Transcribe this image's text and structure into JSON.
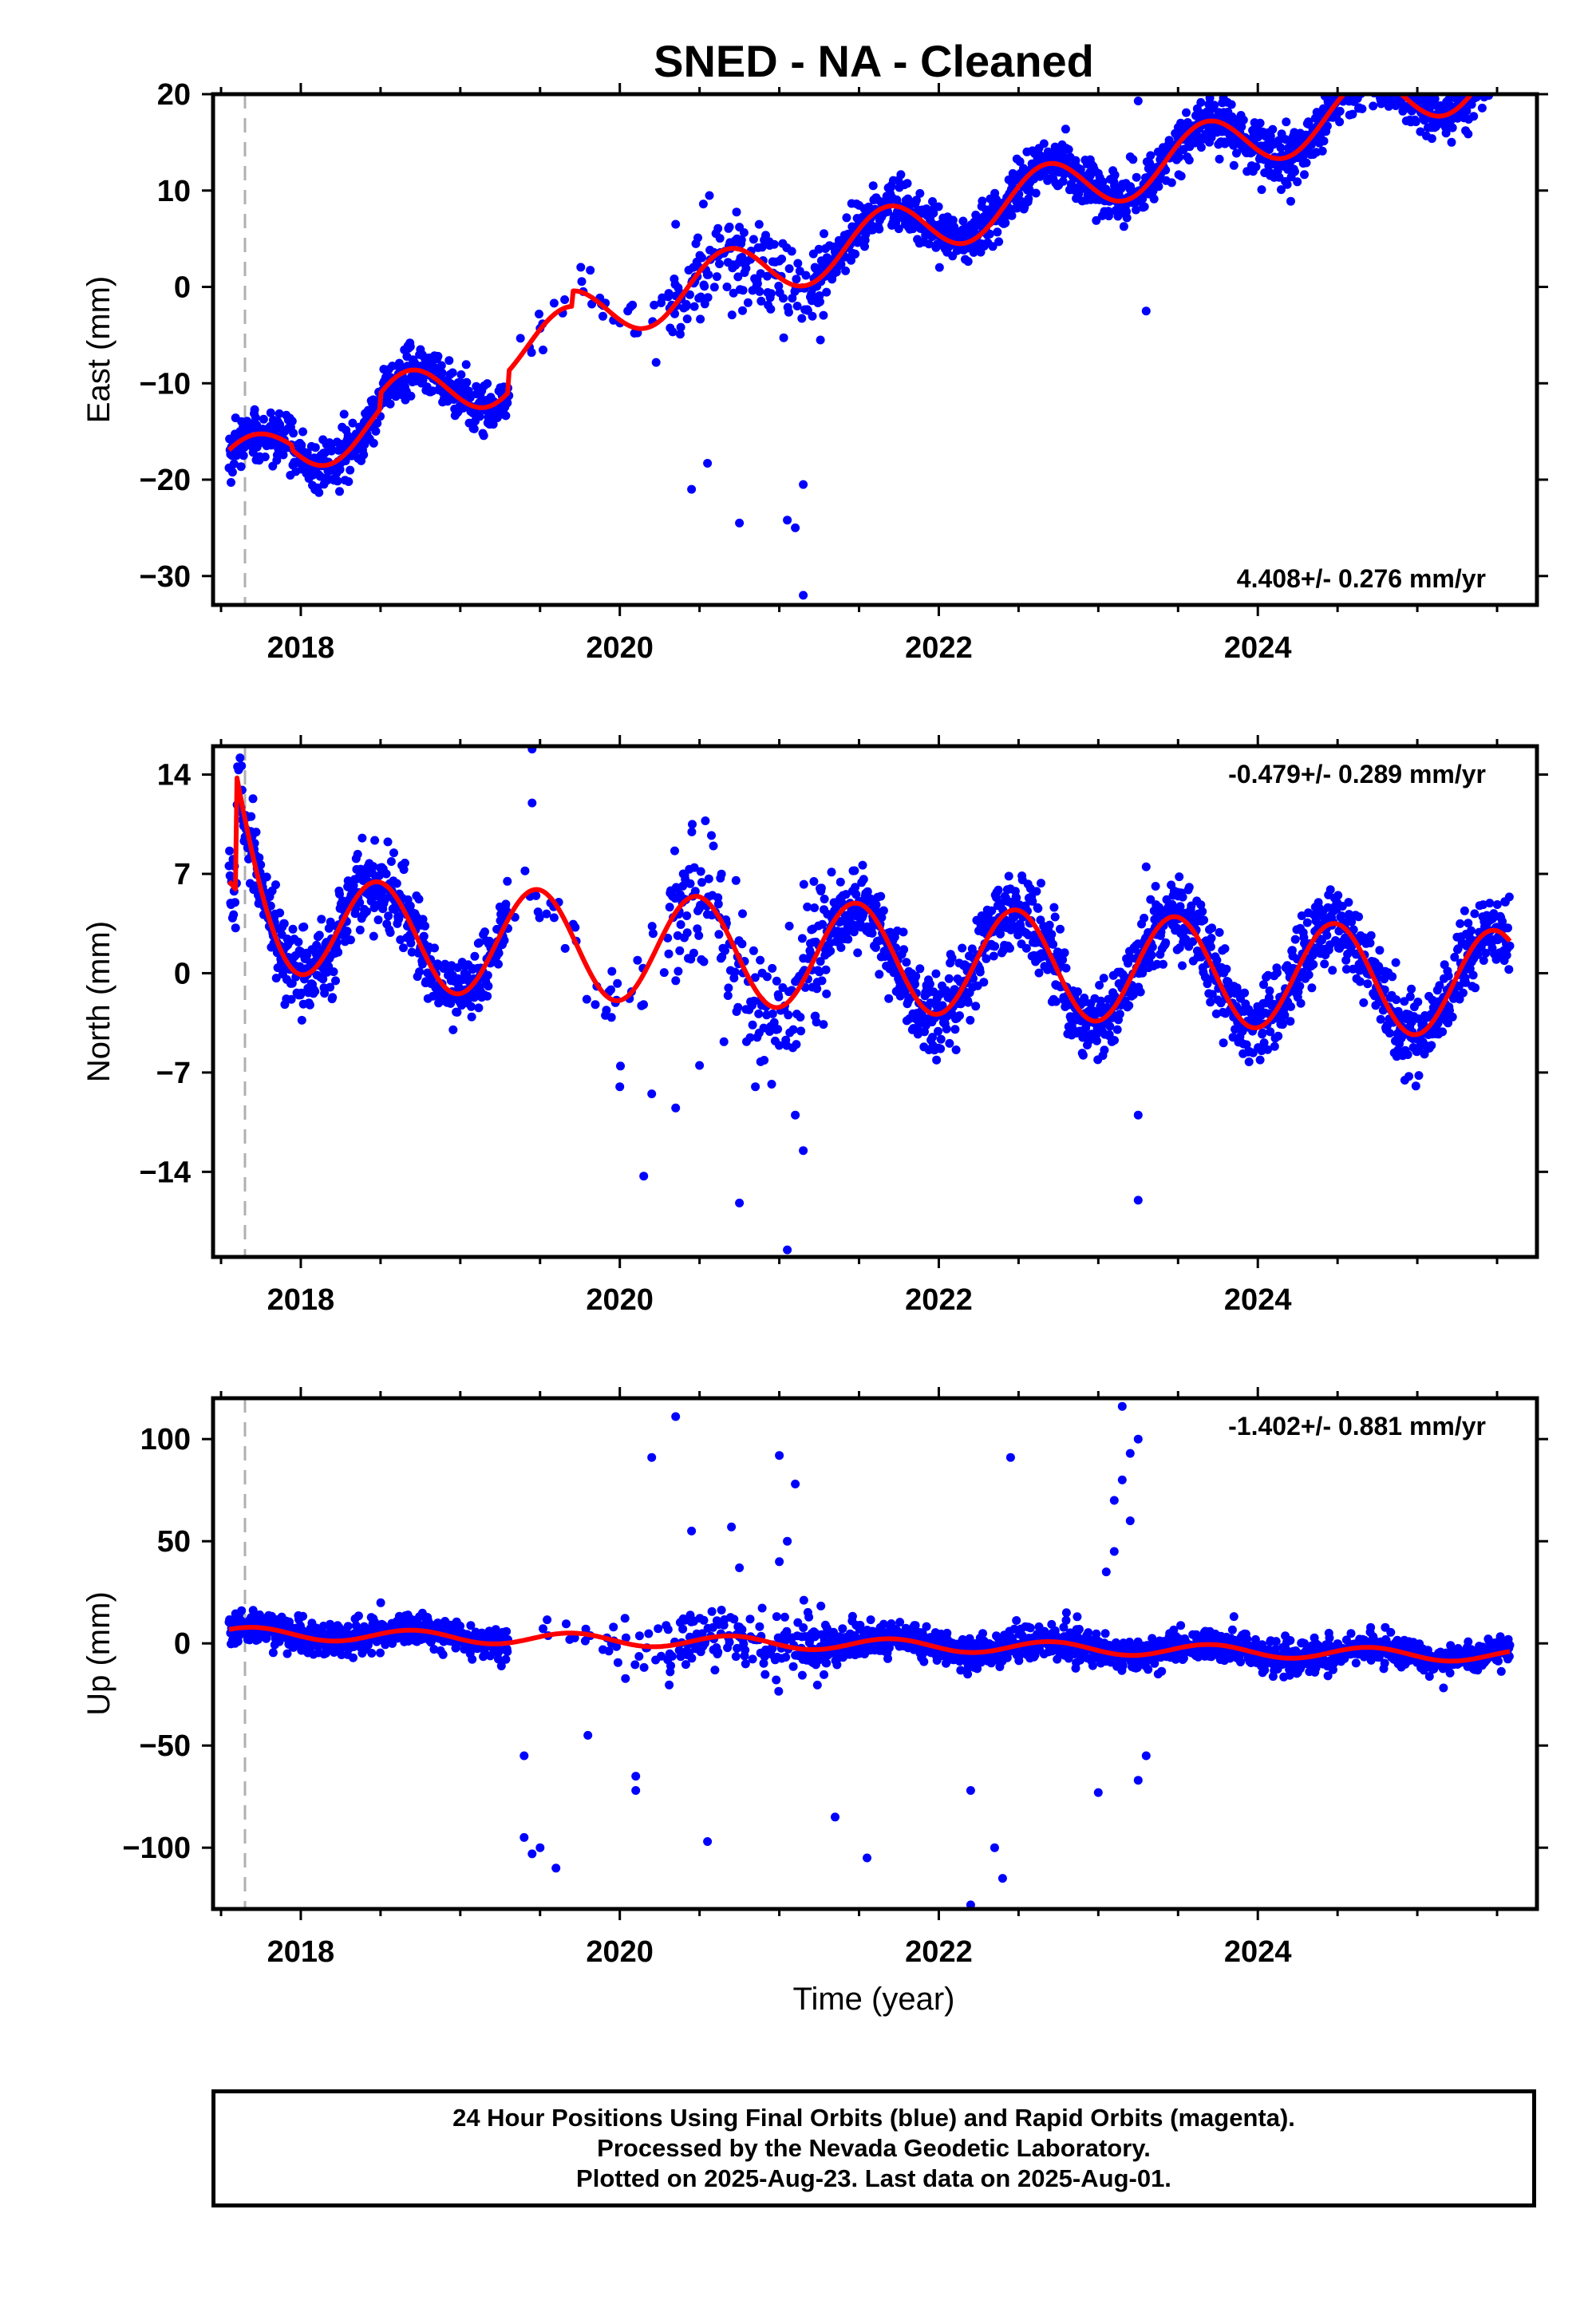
{
  "figure": {
    "title": "SNED  - NA - Cleaned",
    "xlabel": "Time (year)"
  },
  "colors": {
    "final_orbits": "#0000ff",
    "model_fit": "#ff0000",
    "equipment_change": "#b0b0b0",
    "frame": "#000000"
  },
  "footer": {
    "line1": "24 Hour Positions Using Final Orbits (blue) and Rapid Orbits (magenta).",
    "line2": "Processed by the Nevada Geodetic Laboratory.",
    "line3": "Plotted on 2025-Aug-23. Last data on 2025-Aug-01."
  },
  "chart_data": [
    {
      "type": "scatter",
      "component": "east",
      "ylabel": "East (mm)",
      "rate_text": "4.408+/- 0.276 mm/yr",
      "rate_position": "bottom-right",
      "xlim": [
        2017.45,
        2025.75
      ],
      "ylim": [
        -33,
        20
      ],
      "xticks": [
        2018,
        2020,
        2022,
        2024
      ],
      "xtick_labels": [
        "2018",
        "2020",
        "2022",
        "2024"
      ],
      "yticks": [
        -30,
        -20,
        -10,
        0,
        10,
        20
      ],
      "ytick_labels": [
        "−30",
        "−20",
        "−10",
        "0",
        "10",
        "20"
      ],
      "equipment_change_x": 2017.65,
      "model": {
        "trend": [
          2017.6,
          -18.0,
          4.408
        ],
        "seasonal": [
          [
            2017.6,
            2017.9,
            2.2,
            2018.7
          ],
          [
            2018.0,
            2025.6,
            0.9,
            2024.6
          ]
        ],
        "offsets": [
          [
            2018.5,
            1.6
          ],
          [
            2019.3,
            2.2
          ],
          [
            2019.7,
            1.6
          ]
        ]
      },
      "points": {
        "count": 2550,
        "noise": 1.3,
        "sparse_ranges": [
          [
            2019.3,
            2020.3
          ],
          [
            2020.3,
            2021.2
          ]
        ],
        "outliers": [
          [
            2020.35,
            6.5
          ],
          [
            2020.75,
            6.2
          ],
          [
            2020.75,
            -24.5
          ],
          [
            2021.05,
            -24.2
          ],
          [
            2021.1,
            -25.0
          ],
          [
            2021.15,
            -32.0
          ],
          [
            2020.45,
            -21.0
          ],
          [
            2021.15,
            -20.5
          ],
          [
            2023.25,
            19.3
          ],
          [
            2023.2,
            13.5
          ],
          [
            2023.1,
            11.5
          ],
          [
            2022.95,
            13.2
          ],
          [
            2023.3,
            -2.5
          ],
          [
            2020.55,
            -18.3
          ],
          [
            2020.05,
            -2.5
          ]
        ]
      }
    },
    {
      "type": "scatter",
      "component": "north",
      "ylabel": "North (mm)",
      "rate_text": "-0.479+/- 0.289 mm/yr",
      "rate_position": "top-right",
      "xlim": [
        2017.45,
        2025.75
      ],
      "ylim": [
        -20,
        16
      ],
      "xticks": [
        2018,
        2020,
        2022,
        2024
      ],
      "xtick_labels": [
        "2018",
        "2020",
        "2022",
        "2024"
      ],
      "yticks": [
        -14,
        -7,
        0,
        7,
        14
      ],
      "ytick_labels": [
        "−14",
        "−7",
        "0",
        "7",
        "14"
      ],
      "equipment_change_x": 2017.65,
      "model": {
        "trend": [
          2017.6,
          3.0,
          -0.479
        ],
        "seasonal_amplitude": 3.8,
        "seasonal_peak": 2018.48,
        "initial_transient": [
          2017.6,
          8.0,
          0.18
        ]
      },
      "points": {
        "count": 2550,
        "noise": 1.4,
        "sparse_ranges": [
          [
            2019.3,
            2020.3
          ],
          [
            2020.3,
            2021.2
          ]
        ],
        "outliers": [
          [
            2019.45,
            15.8
          ],
          [
            2019.45,
            12.0
          ],
          [
            2017.7,
            12.3
          ],
          [
            2020.15,
            -14.3
          ],
          [
            2020.75,
            -16.2
          ],
          [
            2021.05,
            -19.5
          ],
          [
            2021.15,
            -12.5
          ],
          [
            2021.1,
            -10.0
          ],
          [
            2023.25,
            -16.0
          ],
          [
            2023.25,
            -10.0
          ],
          [
            2023.3,
            7.5
          ],
          [
            2020.0,
            -8.0
          ],
          [
            2020.2,
            -8.5
          ],
          [
            2020.35,
            -9.5
          ],
          [
            2020.5,
            -6.5
          ],
          [
            2020.85,
            -8.0
          ]
        ]
      }
    },
    {
      "type": "scatter",
      "component": "up",
      "ylabel": "Up (mm)",
      "rate_text": "-1.402+/- 0.881 mm/yr",
      "rate_position": "top-right",
      "xlim": [
        2017.45,
        2025.75
      ],
      "ylim": [
        -130,
        120
      ],
      "xticks": [
        2018,
        2020,
        2022,
        2024
      ],
      "xtick_labels": [
        "2018",
        "2020",
        "2022",
        "2024"
      ],
      "yticks": [
        -100,
        -50,
        0,
        50,
        100
      ],
      "ytick_labels": [
        "−100",
        "−50",
        "0",
        "50",
        "100"
      ],
      "equipment_change_x": 2017.65,
      "model": {
        "trend": [
          2017.6,
          5.0,
          -1.402
        ],
        "seasonal_amplitude": 3.0,
        "seasonal_peak": 2018.7
      },
      "points": {
        "count": 2550,
        "noise": 4.0,
        "sparse_ranges": [
          [
            2019.3,
            2020.3
          ],
          [
            2020.3,
            2021.2
          ]
        ],
        "outliers": [
          [
            2020.35,
            111.0
          ],
          [
            2020.2,
            91.0
          ],
          [
            2021.0,
            92.0
          ],
          [
            2021.1,
            78.0
          ],
          [
            2022.45,
            91.0
          ],
          [
            2023.15,
            116.0
          ],
          [
            2023.25,
            100.0
          ],
          [
            2023.2,
            93.0
          ],
          [
            2023.15,
            80.0
          ],
          [
            2023.1,
            70.0
          ],
          [
            2023.2,
            60.0
          ],
          [
            2023.1,
            45.0
          ],
          [
            2023.05,
            35.0
          ],
          [
            2022.8,
            15.0
          ],
          [
            2020.45,
            55.0
          ],
          [
            2020.7,
            57.0
          ],
          [
            2020.75,
            37.0
          ],
          [
            2021.0,
            40.0
          ],
          [
            2021.05,
            50.0
          ],
          [
            2019.45,
            -103.0
          ],
          [
            2019.5,
            -100.0
          ],
          [
            2019.6,
            -110.0
          ],
          [
            2019.8,
            -45.0
          ],
          [
            2019.4,
            -55.0
          ],
          [
            2019.4,
            -95.0
          ],
          [
            2020.55,
            -97.0
          ],
          [
            2021.35,
            -85.0
          ],
          [
            2021.55,
            -105.0
          ],
          [
            2022.2,
            -128.0
          ],
          [
            2022.35,
            -100.0
          ],
          [
            2022.4,
            -115.0
          ],
          [
            2022.2,
            -72.0
          ],
          [
            2023.0,
            -73.0
          ],
          [
            2023.25,
            -67.0
          ],
          [
            2023.3,
            -55.0
          ],
          [
            2020.1,
            -65.0
          ],
          [
            2020.1,
            -72.0
          ]
        ]
      }
    }
  ]
}
